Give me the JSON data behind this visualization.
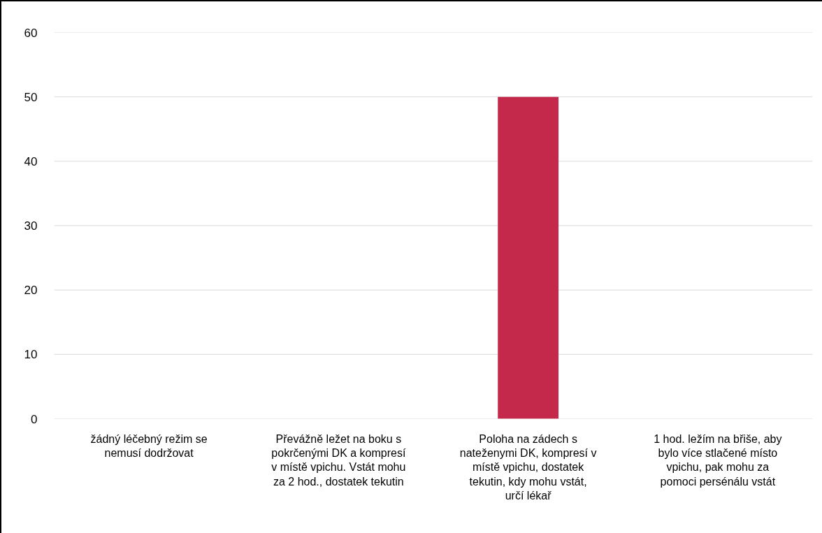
{
  "chart_data": {
    "type": "bar",
    "categories": [
      "žádný léčebný režim se nemusí dodržovat",
      "Převážně ležet na boku s pokrčenými DK a kompresí v místě vpichu. Vstát mohu za 2 hod., dostatek tekutin",
      "Poloha na zádech s nateženymi DK, kompresí v místě vpichu, dostatek tekutin, kdy mohu vstát, určí lékař",
      "1 hod. ležím na břiše, aby bylo více stlačené místo vpichu, pak mohu za pomoci persénálu vstát"
    ],
    "values": [
      0,
      0,
      50,
      0
    ],
    "color": "#c4294b",
    "ylim": [
      0,
      60
    ],
    "yticks": [
      0,
      10,
      20,
      30,
      40,
      50,
      60
    ],
    "grid": "y"
  }
}
